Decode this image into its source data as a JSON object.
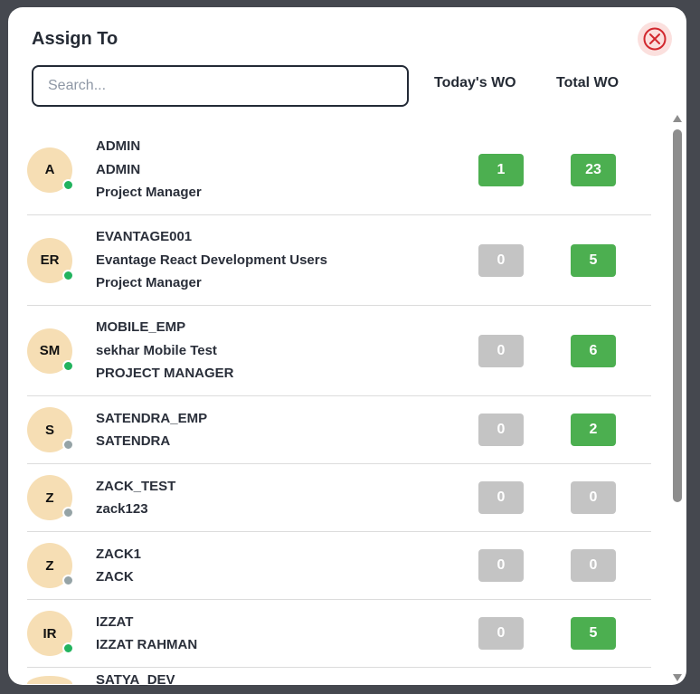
{
  "modal": {
    "title": "Assign To",
    "search_placeholder": "Search...",
    "search_value": "",
    "col_today": "Today's WO",
    "col_total": "Total WO"
  },
  "colors": {
    "badge_active": "#4caf50",
    "badge_zero": "#c4c4c4",
    "online": "#22b35e",
    "offline": "#95a3a6",
    "avatar_bg": "#f6deb4",
    "close": "#d2282e"
  },
  "users": [
    {
      "initials": "A",
      "lines": [
        "ADMIN",
        "ADMIN",
        "Project Manager"
      ],
      "online": true,
      "today": "1",
      "total": "23"
    },
    {
      "initials": "ER",
      "lines": [
        "EVANTAGE001",
        "Evantage React Development Users",
        "Project Manager"
      ],
      "online": true,
      "today": "0",
      "total": "5"
    },
    {
      "initials": "SM",
      "lines": [
        "MOBILE_EMP",
        "sekhar Mobile Test",
        "PROJECT MANAGER"
      ],
      "online": true,
      "today": "0",
      "total": "6"
    },
    {
      "initials": "S",
      "lines": [
        "SATENDRA_EMP",
        "SATENDRA"
      ],
      "online": false,
      "today": "0",
      "total": "2"
    },
    {
      "initials": "Z",
      "lines": [
        "ZACK_TEST",
        "zack123"
      ],
      "online": false,
      "today": "0",
      "total": "0"
    },
    {
      "initials": "Z",
      "lines": [
        "ZACK1",
        "ZACK"
      ],
      "online": false,
      "today": "0",
      "total": "0"
    },
    {
      "initials": "IR",
      "lines": [
        "IZZAT",
        "IZZAT RAHMAN"
      ],
      "online": true,
      "today": "0",
      "total": "5"
    },
    {
      "initials": "",
      "lines": [
        "SATYA_DEV",
        ""
      ],
      "online": true,
      "today": "",
      "total": ""
    }
  ]
}
